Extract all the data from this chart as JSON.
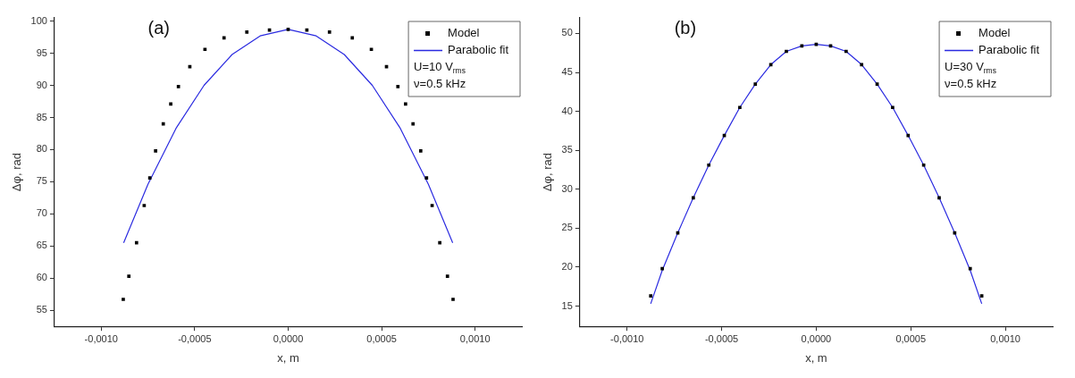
{
  "chart_data": [
    {
      "type": "scatter",
      "title": "(a)",
      "xlabel": "x, m",
      "ylabel": "Δφ, rad",
      "xlim": [
        -0.00125,
        0.00125
      ],
      "ylim": [
        52.5,
        100.5
      ],
      "xticks": [
        {
          "value": -0.001,
          "label": "-0,0010"
        },
        {
          "value": -0.0005,
          "label": "-0,0005"
        },
        {
          "value": 0,
          "label": "0,0000"
        },
        {
          "value": 0.0005,
          "label": "0,0005"
        },
        {
          "value": 0.001,
          "label": "0,0010"
        }
      ],
      "yticks": [
        55,
        60,
        65,
        70,
        75,
        80,
        85,
        90,
        95,
        100
      ],
      "grid": false,
      "legend": "top right",
      "annotations": [
        "U=10 V$_{rms}$",
        "ν=0.5 kHz"
      ],
      "series": [
        {
          "name": "Model",
          "type": "scatter",
          "marker": "square",
          "color": "#000000",
          "x": [
            -0.000882,
            -0.000852,
            -0.000811,
            -0.00077,
            -0.00074,
            -0.000709,
            -0.000668,
            -0.000628,
            -0.000587,
            -0.000526,
            -0.000445,
            -0.000343,
            -0.000221,
            -0.0001,
            0,
            0.0001,
            0.000221,
            0.000343,
            0.000445,
            0.000526,
            0.000587,
            0.000628,
            0.000668,
            0.000709,
            0.00074,
            0.00077,
            0.000811,
            0.000852,
            0.000882
          ],
          "values": [
            56.7,
            60.3,
            65.5,
            71.3,
            75.6,
            79.8,
            84.0,
            87.1,
            89.8,
            92.9,
            95.6,
            97.4,
            98.3,
            98.6,
            98.7,
            98.6,
            98.3,
            97.4,
            95.6,
            92.9,
            89.8,
            87.1,
            84.0,
            79.8,
            75.6,
            71.3,
            65.5,
            60.3,
            56.7
          ]
        },
        {
          "name": "Parabolic fit",
          "type": "line",
          "marker": "none",
          "line_style": "solid",
          "color": "#2a2ae0",
          "x": [
            -0.00088,
            -0.00075,
            -0.0006,
            -0.00045,
            -0.0003,
            -0.00015,
            0,
            0.00015,
            0.0003,
            0.00045,
            0.0006,
            0.00075,
            0.00088
          ],
          "values": [
            65.5,
            74.6,
            83.3,
            90.0,
            94.8,
            97.7,
            98.7,
            97.7,
            94.8,
            90.0,
            83.3,
            74.6,
            65.5
          ]
        }
      ]
    },
    {
      "type": "scatter",
      "title": "(b)",
      "xlabel": "x, m",
      "ylabel": "Δφ, rad",
      "xlim": [
        -0.00125,
        0.00125
      ],
      "ylim": [
        12.4,
        52
      ],
      "xticks": [
        {
          "value": -0.001,
          "label": "-0,0010"
        },
        {
          "value": -0.0005,
          "label": "-0,0005"
        },
        {
          "value": 0,
          "label": "0,0000"
        },
        {
          "value": 0.0005,
          "label": "0,0005"
        },
        {
          "value": 0.001,
          "label": "0,0010"
        }
      ],
      "yticks": [
        15,
        20,
        25,
        30,
        35,
        40,
        45,
        50
      ],
      "grid": false,
      "legend": "top right",
      "annotations": [
        "U=30 V$_{rms}$",
        "ν=0.5 kHz"
      ],
      "series": [
        {
          "name": "Model",
          "type": "scatter",
          "marker": "square",
          "color": "#000000",
          "x": [
            -0.000875,
            -0.000814,
            -0.000732,
            -0.00065,
            -0.000568,
            -0.000486,
            -0.000404,
            -0.000322,
            -0.00024,
            -0.000158,
            -7.6e-05,
            0,
            7.6e-05,
            0.000158,
            0.00024,
            0.000322,
            0.000404,
            0.000486,
            0.000568,
            0.00065,
            0.000732,
            0.000814,
            0.000875
          ],
          "values": [
            16.3,
            19.8,
            24.4,
            28.9,
            33.1,
            36.9,
            40.5,
            43.5,
            46.0,
            47.7,
            48.4,
            48.6,
            48.4,
            47.7,
            46.0,
            43.5,
            40.5,
            36.9,
            33.1,
            28.9,
            24.4,
            19.8,
            16.3
          ]
        },
        {
          "name": "Parabolic fit",
          "type": "line",
          "marker": "none",
          "line_style": "solid",
          "color": "#2a2ae0",
          "x": [
            -0.000875,
            -0.000814,
            -0.000732,
            -0.00065,
            -0.000568,
            -0.000486,
            -0.000404,
            -0.000322,
            -0.00024,
            -0.000158,
            -7.6e-05,
            0,
            7.6e-05,
            0.000158,
            0.00024,
            0.000322,
            0.000404,
            0.000486,
            0.000568,
            0.00065,
            0.000732,
            0.000814,
            0.000875
          ],
          "values": [
            15.3,
            19.6,
            24.4,
            28.9,
            33.1,
            36.9,
            40.5,
            43.5,
            46.0,
            47.7,
            48.4,
            48.6,
            48.4,
            47.7,
            46.0,
            43.5,
            40.5,
            36.9,
            33.1,
            28.9,
            24.4,
            19.6,
            15.3
          ]
        }
      ]
    }
  ]
}
